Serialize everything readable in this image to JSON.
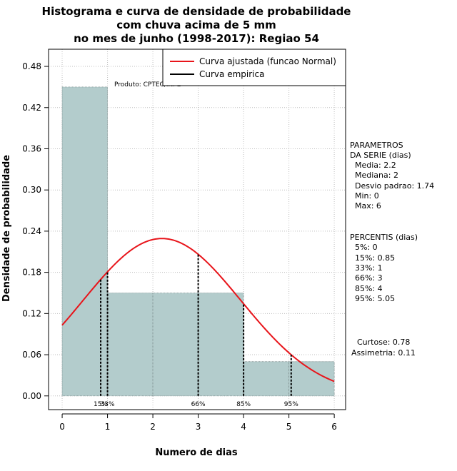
{
  "chart_data": {
    "type": "bar",
    "title_lines": [
      "Histograma e curva de densidade de probabilidade",
      "com chuva acima de 5 mm",
      "no mes de junho (1998-2017): Regiao 54"
    ],
    "xlabel": "Numero de dias",
    "ylabel": "Densidade de probabilidade",
    "xlim": [
      -0.3,
      6.25
    ],
    "ylim": [
      -0.02,
      0.505
    ],
    "x_ticks": [
      0,
      1,
      2,
      3,
      4,
      5,
      6
    ],
    "y_ticks": [
      0.0,
      0.06,
      0.12,
      0.18,
      0.24,
      0.3,
      0.36,
      0.42,
      0.48
    ],
    "y_tick_labels": [
      "0.00",
      "0.06",
      "0.12",
      "0.18",
      "0.24",
      "0.30",
      "0.36",
      "0.42",
      "0.48"
    ],
    "grid": true,
    "bins": [
      {
        "from": 0,
        "to": 1,
        "value": 0.45
      },
      {
        "from": 1,
        "to": 2,
        "value": 0.15
      },
      {
        "from": 2,
        "to": 3,
        "value": 0.15
      },
      {
        "from": 3,
        "to": 4,
        "value": 0.15
      },
      {
        "from": 4,
        "to": 5,
        "value": 0.05
      },
      {
        "from": 5,
        "to": 6,
        "value": 0.05
      }
    ],
    "normal_fit": {
      "mean": 2.2,
      "sd": 1.74,
      "from": 0,
      "to": 6
    },
    "percentile_lines": [
      {
        "label": "15%",
        "x": 0.85
      },
      {
        "label": "33%",
        "x": 1
      },
      {
        "label": "66%",
        "x": 3
      },
      {
        "label": "85%",
        "x": 4
      },
      {
        "label": "95%",
        "x": 5.05
      }
    ],
    "legend": [
      {
        "label": "Curva ajustada (funcao Normal)",
        "color": "#e8141a"
      },
      {
        "label": "Curva empirica",
        "color": "#000000"
      }
    ],
    "legend_position": "top-right",
    "annotation": "Produto: CPTEC/INPE",
    "colors": {
      "bar_fill": "#b3cccc",
      "curve": "#e8141a",
      "grid": "#bfbfbf",
      "percentile": "#000000"
    }
  },
  "side_panel": {
    "parametros": [
      "PARAMETROS",
      "DA SERIE (dias)",
      "  Media: 2.2",
      "  Mediana: 2",
      "  Desvio padrao: 1.74",
      "  Min: 0",
      "  Max: 6"
    ],
    "percentis": [
      "PERCENTIS (dias)",
      "  5%: 0",
      "  15%: 0.85",
      "  33%: 1",
      "  66%: 3",
      "  85%: 4",
      "  95%: 5.05"
    ],
    "curtose": "Curtose: 0.78",
    "assimetria": "Assimetria: 0.11"
  }
}
